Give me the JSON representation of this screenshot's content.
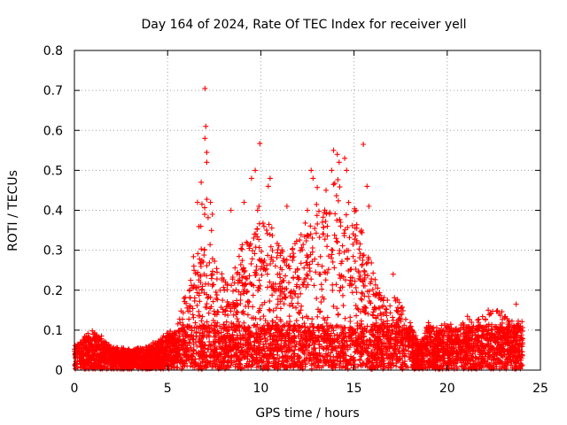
{
  "chart_data": {
    "type": "scatter",
    "title": "Day 164 of 2024, Rate Of TEC Index for receiver yell",
    "xlabel": "GPS time / hours",
    "ylabel": "ROTI / TECUs",
    "xlim": [
      0,
      25
    ],
    "ylim": [
      0,
      0.8
    ],
    "x_ticks": [
      "0",
      "5",
      "10",
      "15",
      "20",
      "25"
    ],
    "y_ticks": [
      "0",
      "0.1",
      "0.2",
      "0.3",
      "0.4",
      "0.5",
      "0.6",
      "0.7",
      "0.8"
    ],
    "grid": true,
    "marker": "+",
    "color": "#ff0000",
    "envelope": {
      "x": [
        0,
        0.5,
        1,
        2,
        3,
        4,
        5,
        5.5,
        6,
        6.5,
        7,
        7.5,
        8,
        8.5,
        9,
        9.5,
        10,
        10.5,
        11,
        11.5,
        12,
        12.5,
        13,
        13.5,
        14,
        14.5,
        15,
        15.5,
        16,
        16.5,
        17,
        17.5,
        18,
        18.5,
        19,
        19.5,
        20,
        20.5,
        21,
        21.5,
        22,
        22.5,
        23,
        23.5,
        24
      ],
      "y": [
        0.06,
        0.08,
        0.1,
        0.06,
        0.05,
        0.06,
        0.09,
        0.1,
        0.2,
        0.3,
        0.45,
        0.3,
        0.22,
        0.25,
        0.3,
        0.35,
        0.4,
        0.35,
        0.3,
        0.28,
        0.32,
        0.4,
        0.45,
        0.38,
        0.48,
        0.42,
        0.4,
        0.32,
        0.25,
        0.18,
        0.16,
        0.2,
        0.12,
        0.06,
        0.12,
        0.1,
        0.12,
        0.1,
        0.13,
        0.12,
        0.13,
        0.15,
        0.14,
        0.12,
        0.12
      ]
    },
    "peaks": [
      {
        "x": 6.6,
        "y": 0.42
      },
      {
        "x": 6.8,
        "y": 0.47
      },
      {
        "x": 7.0,
        "y": 0.705
      },
      {
        "x": 7.05,
        "y": 0.61
      },
      {
        "x": 7.0,
        "y": 0.58
      },
      {
        "x": 7.1,
        "y": 0.545
      },
      {
        "x": 7.1,
        "y": 0.52
      },
      {
        "x": 7.3,
        "y": 0.42
      },
      {
        "x": 7.4,
        "y": 0.39
      },
      {
        "x": 8.4,
        "y": 0.4
      },
      {
        "x": 9.1,
        "y": 0.42
      },
      {
        "x": 9.5,
        "y": 0.48
      },
      {
        "x": 9.7,
        "y": 0.5
      },
      {
        "x": 9.9,
        "y": 0.41
      },
      {
        "x": 9.95,
        "y": 0.567
      },
      {
        "x": 10.5,
        "y": 0.48
      },
      {
        "x": 10.4,
        "y": 0.46
      },
      {
        "x": 11.4,
        "y": 0.41
      },
      {
        "x": 12.5,
        "y": 0.4
      },
      {
        "x": 12.7,
        "y": 0.5
      },
      {
        "x": 12.8,
        "y": 0.48
      },
      {
        "x": 13.3,
        "y": 0.37
      },
      {
        "x": 13.5,
        "y": 0.45
      },
      {
        "x": 13.8,
        "y": 0.5
      },
      {
        "x": 13.9,
        "y": 0.55
      },
      {
        "x": 14.1,
        "y": 0.54
      },
      {
        "x": 14.2,
        "y": 0.52
      },
      {
        "x": 14.5,
        "y": 0.53
      },
      {
        "x": 14.6,
        "y": 0.5
      },
      {
        "x": 15.5,
        "y": 0.565
      },
      {
        "x": 15.7,
        "y": 0.46
      },
      {
        "x": 15.8,
        "y": 0.41
      },
      {
        "x": 15.4,
        "y": 0.35
      },
      {
        "x": 17.1,
        "y": 0.24
      },
      {
        "x": 22.2,
        "y": 0.15
      },
      {
        "x": 23.7,
        "y": 0.165
      }
    ]
  }
}
